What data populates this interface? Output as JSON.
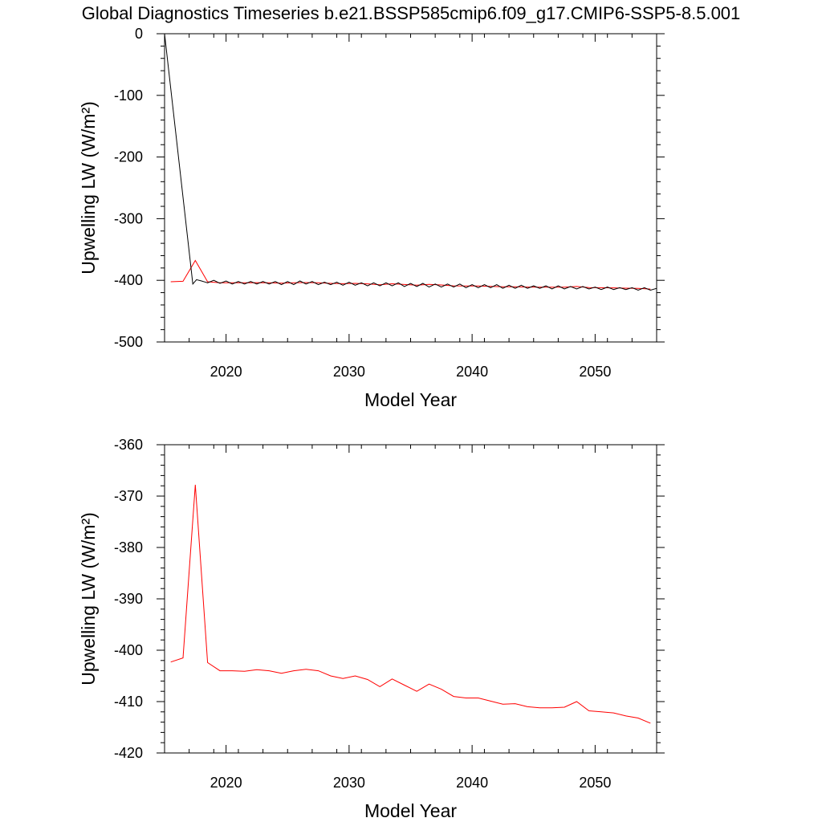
{
  "title": "Global Diagnostics Timeseries b.e21.BSSP585cmip6.f09_g17.CMIP6-SSP5-8.5.001",
  "colors": {
    "red_series": "#ff0000",
    "black_series": "#000000",
    "axis": "#000000"
  },
  "chart_data": [
    {
      "type": "line",
      "title": "",
      "xlabel": "Model Year",
      "ylabel": "Upwelling LW (W/m²)",
      "xlim": [
        2015,
        2055
      ],
      "ylim": [
        -500,
        0
      ],
      "x_ticks": [
        2020,
        2030,
        2040,
        2050
      ],
      "y_ticks": [
        0,
        -100,
        -200,
        -300,
        -400,
        -500
      ],
      "x_tick_labels": [
        "2020",
        "2030",
        "2040",
        "2050"
      ],
      "y_tick_labels": [
        "0",
        "-100",
        "-200",
        "-300",
        "-400",
        "-500"
      ],
      "series": [
        {
          "name": "red",
          "color": "#ff0000",
          "x": [
            2015.5,
            2016.5,
            2017.5,
            2018.5,
            2019.5,
            2020.5,
            2021.5,
            2022.5,
            2023.5,
            2024.5,
            2025.5,
            2026.5,
            2027.5,
            2028.5,
            2029.5,
            2030.5,
            2031.5,
            2032.5,
            2033.5,
            2034.5,
            2035.5,
            2036.5,
            2037.5,
            2038.5,
            2039.5,
            2040.5,
            2041.5,
            2042.5,
            2043.5,
            2044.5,
            2045.5,
            2046.5,
            2047.5,
            2048.5,
            2049.5,
            2050.5,
            2051.5,
            2052.5,
            2053.5,
            2054.5
          ],
          "values": [
            -402.3,
            -401.5,
            -367.8,
            -402.4,
            -404.0,
            -404.0,
            -404.1,
            -403.8,
            -404.0,
            -404.5,
            -404.0,
            -403.7,
            -404.0,
            -405.0,
            -405.5,
            -405.0,
            -405.7,
            -407.1,
            -405.6,
            -406.8,
            -408.0,
            -406.6,
            -407.6,
            -409.0,
            -409.3,
            -409.3,
            -409.9,
            -410.5,
            -410.4,
            -411.0,
            -411.2,
            -411.2,
            -411.1,
            -410.0,
            -411.8,
            -412.0,
            -412.2,
            -412.8,
            -413.2,
            -414.2
          ]
        },
        {
          "name": "black",
          "color": "#000000",
          "x": [
            2015.0,
            2017.3,
            2017.6,
            2018.0,
            2018.5,
            2019.0,
            2019.5,
            2020.0,
            2020.5,
            2021.0,
            2021.5,
            2022.0,
            2022.5,
            2023.0,
            2023.5,
            2024.0,
            2024.5,
            2025.0,
            2025.5,
            2026.0,
            2026.5,
            2027.0,
            2027.5,
            2028.0,
            2028.5,
            2029.0,
            2029.5,
            2030.0,
            2030.5,
            2031.0,
            2031.5,
            2032.0,
            2032.5,
            2033.0,
            2033.5,
            2034.0,
            2034.5,
            2035.0,
            2035.5,
            2036.0,
            2036.5,
            2037.0,
            2037.5,
            2038.0,
            2038.5,
            2039.0,
            2039.5,
            2040.0,
            2040.5,
            2041.0,
            2041.5,
            2042.0,
            2042.5,
            2043.0,
            2043.5,
            2044.0,
            2044.5,
            2045.0,
            2045.5,
            2046.0,
            2046.5,
            2047.0,
            2047.5,
            2048.0,
            2048.5,
            2049.0,
            2049.5,
            2050.0,
            2050.5,
            2051.0,
            2051.5,
            2052.0,
            2052.5,
            2053.0,
            2053.5,
            2054.0,
            2054.5,
            2055.0
          ],
          "values": [
            0,
            -406,
            -399,
            -401,
            -404,
            -400,
            -405,
            -401,
            -406,
            -402,
            -406,
            -402,
            -406,
            -402,
            -406,
            -402,
            -407,
            -402,
            -407,
            -401,
            -406,
            -402,
            -407,
            -403,
            -407,
            -403,
            -408,
            -403,
            -408,
            -404,
            -409,
            -404,
            -409,
            -404,
            -409,
            -404,
            -410,
            -405,
            -410,
            -405,
            -411,
            -406,
            -411,
            -406,
            -411,
            -406,
            -412,
            -407,
            -412,
            -407,
            -412,
            -407,
            -413,
            -408,
            -413,
            -408,
            -413,
            -409,
            -413,
            -409,
            -414,
            -409,
            -414,
            -410,
            -414,
            -410,
            -414,
            -411,
            -415,
            -411,
            -415,
            -412,
            -415,
            -412,
            -416,
            -412,
            -416,
            -413
          ]
        }
      ]
    },
    {
      "type": "line",
      "title": "",
      "xlabel": "Model Year",
      "ylabel": "Upwelling LW (W/m²)",
      "xlim": [
        2015,
        2055
      ],
      "ylim": [
        -420,
        -360
      ],
      "x_ticks": [
        2020,
        2030,
        2040,
        2050
      ],
      "y_ticks": [
        -360,
        -370,
        -380,
        -390,
        -400,
        -410,
        -420
      ],
      "x_tick_labels": [
        "2020",
        "2030",
        "2040",
        "2050"
      ],
      "y_tick_labels": [
        "-360",
        "-370",
        "-380",
        "-390",
        "-400",
        "-410",
        "-420"
      ],
      "series": [
        {
          "name": "red",
          "color": "#ff0000",
          "x": [
            2015.5,
            2016.5,
            2017.5,
            2018.5,
            2019.5,
            2020.5,
            2021.5,
            2022.5,
            2023.5,
            2024.5,
            2025.5,
            2026.5,
            2027.5,
            2028.5,
            2029.5,
            2030.5,
            2031.5,
            2032.5,
            2033.5,
            2034.5,
            2035.5,
            2036.5,
            2037.5,
            2038.5,
            2039.5,
            2040.5,
            2041.5,
            2042.5,
            2043.5,
            2044.5,
            2045.5,
            2046.5,
            2047.5,
            2048.5,
            2049.5,
            2050.5,
            2051.5,
            2052.5,
            2053.5,
            2054.5
          ],
          "values": [
            -402.3,
            -401.5,
            -367.8,
            -402.4,
            -404.0,
            -404.0,
            -404.1,
            -403.8,
            -404.0,
            -404.5,
            -404.0,
            -403.7,
            -404.0,
            -405.0,
            -405.5,
            -405.0,
            -405.7,
            -407.1,
            -405.6,
            -406.8,
            -408.0,
            -406.6,
            -407.6,
            -409.0,
            -409.3,
            -409.3,
            -409.9,
            -410.5,
            -410.4,
            -411.0,
            -411.2,
            -411.2,
            -411.1,
            -410.0,
            -411.8,
            -412.0,
            -412.2,
            -412.8,
            -413.2,
            -414.2
          ]
        }
      ]
    }
  ]
}
